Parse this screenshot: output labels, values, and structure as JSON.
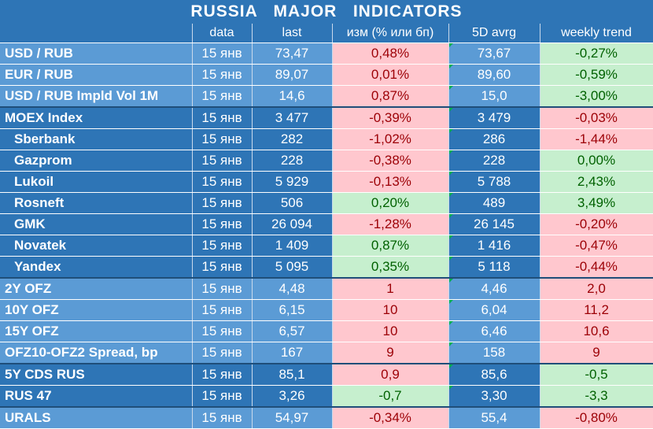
{
  "title": "RUSSIA   MAJOR   INDICATORS",
  "headers": [
    "",
    "data",
    "last",
    "изм (% или бп)",
    "5D avrg",
    "weekly trend"
  ],
  "rows": [
    {
      "name": "USD / RUB",
      "date": "15 янв",
      "last": "73,47",
      "chg": "0,48%",
      "avg": "73,67",
      "trend": "-0,27%"
    },
    {
      "name": "EUR / RUB",
      "date": "15 янв",
      "last": "89,07",
      "chg": "0,01%",
      "avg": "89,60",
      "trend": "-0,59%"
    },
    {
      "name": "USD / RUB Impld Vol 1M",
      "date": "15 янв",
      "last": "14,6",
      "chg": "0,87%",
      "avg": "15,0",
      "trend": "-3,00%"
    },
    {
      "name": "MOEX Index",
      "date": "15 янв",
      "last": "3 477",
      "chg": "-0,39%",
      "avg": "3 479",
      "trend": "-0,03%"
    },
    {
      "name": "Sberbank",
      "date": "15 янв",
      "last": "282",
      "chg": "-1,02%",
      "avg": "286",
      "trend": "-1,44%"
    },
    {
      "name": "Gazprom",
      "date": "15 янв",
      "last": "228",
      "chg": "-0,38%",
      "avg": "228",
      "trend": "0,00%"
    },
    {
      "name": "Lukoil",
      "date": "15 янв",
      "last": "5 929",
      "chg": "-0,13%",
      "avg": "5 788",
      "trend": "2,43%"
    },
    {
      "name": "Rosneft",
      "date": "15 янв",
      "last": "506",
      "chg": "0,20%",
      "avg": "489",
      "trend": "3,49%"
    },
    {
      "name": "GMK",
      "date": "15 янв",
      "last": "26 094",
      "chg": "-1,28%",
      "avg": "26 145",
      "trend": "-0,20%"
    },
    {
      "name": "Novatek",
      "date": "15 янв",
      "last": "1 409",
      "chg": "0,87%",
      "avg": "1 416",
      "trend": "-0,47%"
    },
    {
      "name": "Yandex",
      "date": "15 янв",
      "last": "5 095",
      "chg": "0,35%",
      "avg": "5 118",
      "trend": "-0,44%"
    },
    {
      "name": "2Y OFZ",
      "date": "15 янв",
      "last": "4,48",
      "chg": "1",
      "avg": "4,46",
      "trend": "2,0"
    },
    {
      "name": "10Y OFZ",
      "date": "15 янв",
      "last": "6,15",
      "chg": "10",
      "avg": "6,04",
      "trend": "11,2"
    },
    {
      "name": "15Y OFZ",
      "date": "15 янв",
      "last": "6,57",
      "chg": "10",
      "avg": "6,46",
      "trend": "10,6"
    },
    {
      "name": "OFZ10-OFZ2 Spread, bp",
      "date": "15 янв",
      "last": "167",
      "chg": "9",
      "avg": "158",
      "trend": "9"
    },
    {
      "name": "5Y CDS RUS",
      "date": "15 янв",
      "last": "85,1",
      "chg": "0,9",
      "avg": "85,6",
      "trend": "-0,5"
    },
    {
      "name": "RUS 47",
      "date": "15 янв",
      "last": "3,26",
      "chg": "-0,7",
      "avg": "3,30",
      "trend": "-3,3"
    },
    {
      "name": "URALS",
      "date": "15 янв",
      "last": "54,97",
      "chg": "-0,34%",
      "avg": "55,4",
      "trend": "-0,80%"
    }
  ],
  "colors": {
    "light_blue": "#5b9bd5",
    "dark_blue": "#2e75b6",
    "neg_fill": "#ffc7ce",
    "neg_text": "#9c0006",
    "pos_fill": "#c6efce",
    "pos_text": "#006100"
  }
}
